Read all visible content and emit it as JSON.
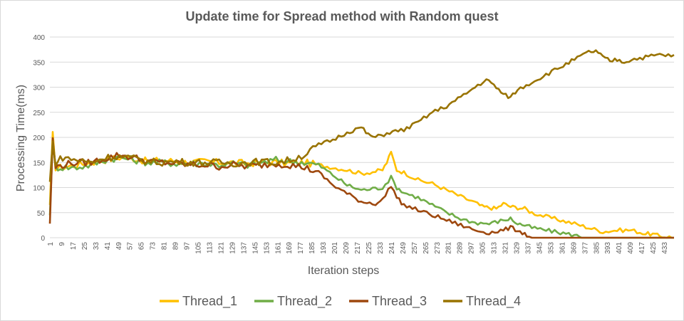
{
  "chart_data": {
    "type": "line",
    "title": "Update time for Spread method with Random quest",
    "xlabel": "Iteration steps",
    "ylabel": "Processing Time(ms)",
    "ylim": [
      0,
      400
    ],
    "yticks": [
      0,
      50,
      100,
      150,
      200,
      250,
      300,
      350,
      400
    ],
    "xticks": [
      1,
      9,
      17,
      25,
      33,
      41,
      49,
      57,
      65,
      73,
      81,
      89,
      97,
      105,
      113,
      121,
      129,
      137,
      145,
      153,
      161,
      169,
      177,
      185,
      193,
      201,
      209,
      217,
      225,
      233,
      241,
      249,
      257,
      265,
      273,
      281,
      289,
      297,
      305,
      313,
      321,
      329,
      337,
      345,
      353,
      361,
      369,
      377,
      385,
      393,
      401,
      409,
      417,
      425,
      433
    ],
    "xlim": [
      1,
      440
    ],
    "grid": true,
    "legend_position": "bottom",
    "series": [
      {
        "name": "Thread_1",
        "color": "#ffc000",
        "points": [
          [
            1,
            60
          ],
          [
            3,
            205
          ],
          [
            5,
            140
          ],
          [
            10,
            140
          ],
          [
            20,
            145
          ],
          [
            30,
            150
          ],
          [
            40,
            155
          ],
          [
            50,
            160
          ],
          [
            60,
            158
          ],
          [
            70,
            152
          ],
          [
            80,
            155
          ],
          [
            90,
            152
          ],
          [
            100,
            150
          ],
          [
            110,
            152
          ],
          [
            120,
            150
          ],
          [
            130,
            150
          ],
          [
            140,
            148
          ],
          [
            150,
            150
          ],
          [
            160,
            150
          ],
          [
            170,
            148
          ],
          [
            180,
            150
          ],
          [
            190,
            145
          ],
          [
            200,
            140
          ],
          [
            210,
            135
          ],
          [
            220,
            128
          ],
          [
            230,
            132
          ],
          [
            235,
            135
          ],
          [
            238,
            150
          ],
          [
            241,
            170
          ],
          [
            245,
            135
          ],
          [
            250,
            130
          ],
          [
            260,
            115
          ],
          [
            270,
            108
          ],
          [
            280,
            95
          ],
          [
            290,
            82
          ],
          [
            300,
            70
          ],
          [
            305,
            62
          ],
          [
            310,
            60
          ],
          [
            315,
            58
          ],
          [
            320,
            68
          ],
          [
            325,
            62
          ],
          [
            330,
            60
          ],
          [
            335,
            58
          ],
          [
            340,
            50
          ],
          [
            350,
            42
          ],
          [
            360,
            35
          ],
          [
            370,
            28
          ],
          [
            380,
            20
          ],
          [
            390,
            12
          ],
          [
            400,
            15
          ],
          [
            410,
            15
          ],
          [
            420,
            8
          ],
          [
            425,
            7
          ],
          [
            430,
            3
          ],
          [
            435,
            2
          ],
          [
            440,
            0
          ]
        ]
      },
      {
        "name": "Thread_2",
        "color": "#70ad47",
        "points": [
          [
            1,
            50
          ],
          [
            3,
            185
          ],
          [
            5,
            140
          ],
          [
            10,
            140
          ],
          [
            20,
            140
          ],
          [
            30,
            145
          ],
          [
            40,
            155
          ],
          [
            50,
            160
          ],
          [
            60,
            155
          ],
          [
            70,
            150
          ],
          [
            80,
            150
          ],
          [
            90,
            148
          ],
          [
            100,
            148
          ],
          [
            110,
            148
          ],
          [
            120,
            145
          ],
          [
            130,
            148
          ],
          [
            140,
            145
          ],
          [
            150,
            150
          ],
          [
            160,
            155
          ],
          [
            170,
            152
          ],
          [
            180,
            150
          ],
          [
            190,
            145
          ],
          [
            200,
            125
          ],
          [
            210,
            105
          ],
          [
            220,
            95
          ],
          [
            230,
            98
          ],
          [
            235,
            100
          ],
          [
            241,
            120
          ],
          [
            245,
            100
          ],
          [
            250,
            90
          ],
          [
            260,
            80
          ],
          [
            270,
            65
          ],
          [
            280,
            50
          ],
          [
            290,
            38
          ],
          [
            300,
            30
          ],
          [
            310,
            28
          ],
          [
            320,
            35
          ],
          [
            325,
            38
          ],
          [
            330,
            28
          ],
          [
            335,
            25
          ],
          [
            340,
            20
          ],
          [
            350,
            15
          ],
          [
            360,
            10
          ],
          [
            370,
            5
          ],
          [
            375,
            2
          ],
          [
            380,
            0
          ],
          [
            440,
            0
          ]
        ]
      },
      {
        "name": "Thread_3",
        "color": "#9e480e",
        "points": [
          [
            1,
            30
          ],
          [
            3,
            195
          ],
          [
            5,
            140
          ],
          [
            10,
            145
          ],
          [
            20,
            150
          ],
          [
            30,
            150
          ],
          [
            40,
            158
          ],
          [
            50,
            165
          ],
          [
            60,
            160
          ],
          [
            70,
            152
          ],
          [
            80,
            150
          ],
          [
            90,
            148
          ],
          [
            100,
            145
          ],
          [
            110,
            145
          ],
          [
            120,
            142
          ],
          [
            130,
            145
          ],
          [
            140,
            142
          ],
          [
            150,
            145
          ],
          [
            160,
            148
          ],
          [
            170,
            145
          ],
          [
            180,
            140
          ],
          [
            190,
            130
          ],
          [
            200,
            105
          ],
          [
            210,
            88
          ],
          [
            220,
            72
          ],
          [
            230,
            68
          ],
          [
            235,
            75
          ],
          [
            241,
            105
          ],
          [
            245,
            80
          ],
          [
            250,
            65
          ],
          [
            260,
            55
          ],
          [
            270,
            45
          ],
          [
            280,
            35
          ],
          [
            290,
            25
          ],
          [
            300,
            15
          ],
          [
            310,
            10
          ],
          [
            320,
            15
          ],
          [
            325,
            20
          ],
          [
            330,
            15
          ],
          [
            335,
            8
          ],
          [
            338,
            2
          ],
          [
            340,
            0
          ],
          [
            440,
            0
          ]
        ]
      },
      {
        "name": "Thread_4",
        "color": "#997300",
        "points": [
          [
            1,
            110
          ],
          [
            3,
            190
          ],
          [
            5,
            150
          ],
          [
            10,
            160
          ],
          [
            20,
            155
          ],
          [
            30,
            150
          ],
          [
            40,
            160
          ],
          [
            50,
            162
          ],
          [
            60,
            158
          ],
          [
            70,
            152
          ],
          [
            80,
            150
          ],
          [
            90,
            152
          ],
          [
            100,
            150
          ],
          [
            110,
            150
          ],
          [
            120,
            150
          ],
          [
            130,
            148
          ],
          [
            140,
            150
          ],
          [
            150,
            152
          ],
          [
            160,
            150
          ],
          [
            170,
            155
          ],
          [
            180,
            165
          ],
          [
            190,
            185
          ],
          [
            200,
            195
          ],
          [
            210,
            210
          ],
          [
            220,
            220
          ],
          [
            225,
            205
          ],
          [
            230,
            200
          ],
          [
            240,
            210
          ],
          [
            250,
            215
          ],
          [
            260,
            230
          ],
          [
            270,
            250
          ],
          [
            280,
            262
          ],
          [
            290,
            280
          ],
          [
            300,
            300
          ],
          [
            308,
            315
          ],
          [
            315,
            300
          ],
          [
            320,
            285
          ],
          [
            325,
            280
          ],
          [
            330,
            295
          ],
          [
            340,
            310
          ],
          [
            350,
            325
          ],
          [
            360,
            340
          ],
          [
            370,
            355
          ],
          [
            380,
            370
          ],
          [
            385,
            372
          ],
          [
            390,
            360
          ],
          [
            395,
            352
          ],
          [
            400,
            355
          ],
          [
            405,
            350
          ],
          [
            410,
            355
          ],
          [
            420,
            360
          ],
          [
            430,
            365
          ],
          [
            440,
            362
          ]
        ]
      }
    ]
  }
}
